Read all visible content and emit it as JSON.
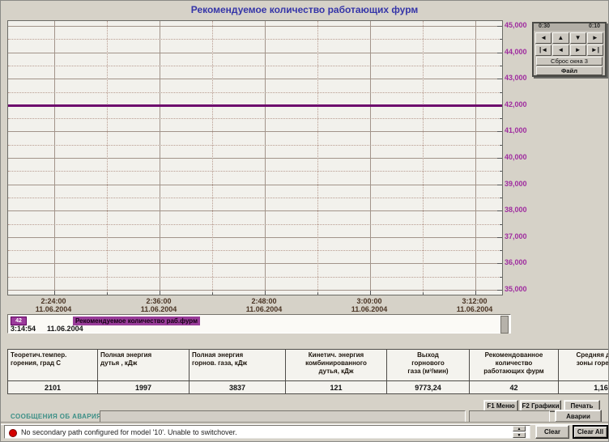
{
  "title": "Рекомендуемое количество работающих фурм",
  "colors": {
    "title": "#3535a8",
    "y_label": "#9f2c9f",
    "series": "#6d0a6d",
    "alarm_label": "#3b8f86",
    "status_indicator": "#d40000"
  },
  "chart_data": {
    "type": "line",
    "title": "Рекомендуемое количество работающих фурм",
    "xlabel": "",
    "ylabel": "",
    "ylim": [
      35000,
      45000
    ],
    "y_tick_step": 1000,
    "y_minor_step": 500,
    "grid": true,
    "legend_position": "bottom",
    "y_tick_labels": [
      "45,000",
      "44,000",
      "43,000",
      "42,000",
      "41,000",
      "40,000",
      "39,000",
      "38,000",
      "37,000",
      "36,000",
      "35,000"
    ],
    "x_ticks": [
      {
        "time": "2:24:00",
        "date": "11.06.2004"
      },
      {
        "time": "2:36:00",
        "date": "11.06.2004"
      },
      {
        "time": "2:48:00",
        "date": "11.06.2004"
      },
      {
        "time": "3:00:00",
        "date": "11.06.2004"
      },
      {
        "time": "3:12:00",
        "date": "11.06.2004"
      }
    ],
    "series": [
      {
        "name": "Рекомендуемое количество раб.фурм",
        "color": "#6d0a6d",
        "x": [
          "2:24:00",
          "2:36:00",
          "2:48:00",
          "3:00:00",
          "3:12:00"
        ],
        "values": [
          42000,
          42000,
          42000,
          42000,
          42000
        ],
        "current_value": "42"
      }
    ]
  },
  "nav": {
    "interval_left": "0:30",
    "interval_right": "0:10",
    "row1": [
      "◄",
      "▲",
      "▼",
      "►"
    ],
    "row2": [
      "|◄",
      "◄",
      "►",
      "►|"
    ],
    "row1_names": [
      "pan-left-button",
      "pan-up-button",
      "pan-down-button",
      "pan-right-button"
    ],
    "row2_names": [
      "jump-start-button",
      "step-left-button",
      "step-right-button",
      "jump-end-button"
    ],
    "reset_label": "Сброс окна 3",
    "file_label": "Файл"
  },
  "legend": {
    "value_chip": "42",
    "series_label": "Рекомендуемое количество раб.фурм",
    "time": "3:14:54",
    "date": "11.06.2004"
  },
  "table": {
    "columns": [
      {
        "header": "Теоретич.темпер.\nгорения, град С",
        "value": "2101",
        "align": "left"
      },
      {
        "header": "Полная энергия\nдутья , кДж",
        "value": "1997",
        "align": "left"
      },
      {
        "header": "Полная энергия\nгорнов. газа, кДж",
        "value": "3837",
        "align": "left"
      },
      {
        "header": "Кинетич. энергия\nкомбинированного\nдутья, кДж",
        "value": "121",
        "align": "center"
      },
      {
        "header": "Выход\nгорнового\nгаза (м³/мин)",
        "value": "9773,24",
        "align": "center"
      },
      {
        "header": "Рекомендованное\nколичество\nработающих фурм",
        "value": "42",
        "align": "center"
      },
      {
        "header": "Средняя длина\nзоны горен. (м)",
        "value": "1,16",
        "align": "center"
      }
    ]
  },
  "actions": {
    "f1": "F1 Меню",
    "f2": "F2 Графики",
    "print": "Печать",
    "alarms": "Аварии"
  },
  "alarm_section": {
    "label": "СООБЩЕНИЯ ОБ АВАРИЯХ"
  },
  "status_bar": {
    "message": "No secondary path configured for model '10'.  Unable to switchover.",
    "clear": "Clear",
    "clear_all": "Clear All"
  }
}
